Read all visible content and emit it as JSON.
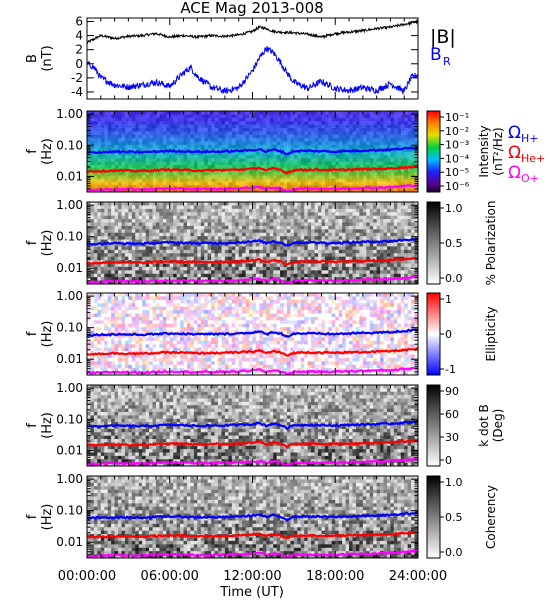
{
  "chart_data": {
    "title": "ACE Mag 2013-008",
    "xlabel": "Time (UT)",
    "x_ticks": [
      "00:00:00",
      "06:00:00",
      "12:00:00",
      "18:00:00",
      "24:00:00"
    ],
    "x_range_hours": [
      0,
      24
    ],
    "panels": [
      {
        "type": "line",
        "ylabel": [
          "B",
          "(nT)"
        ],
        "ylim": [
          -5,
          6.5
        ],
        "y_ticks": [
          "6",
          "4",
          "2",
          "0",
          "-2",
          "-4"
        ],
        "y_tick_values": [
          6,
          4,
          2,
          0,
          -2,
          -4
        ],
        "legend": [
          "|B|",
          "B_R"
        ],
        "legend_text": {
          "b_main": "|B|",
          "b_r_main": "B",
          "b_r_sub": "R"
        },
        "series": [
          {
            "name": "|B|",
            "color": "#000000",
            "x": [
              0,
              1,
              2,
              3,
              4,
              5,
              6,
              7,
              8,
              9,
              10,
              11,
              12,
              12.5,
              13,
              13.5,
              14,
              15,
              16,
              17,
              18,
              19,
              20,
              21,
              22,
              23,
              24
            ],
            "y": [
              3.0,
              4.0,
              3.6,
              3.9,
              4.0,
              4.3,
              3.8,
              4.0,
              3.8,
              4.0,
              3.9,
              4.1,
              4.6,
              5.2,
              5.0,
              4.6,
              4.5,
              4.4,
              4.2,
              3.8,
              4.3,
              4.5,
              4.7,
              5.0,
              5.2,
              5.6,
              6.0
            ]
          },
          {
            "name": "B_R",
            "color": "#0000ff",
            "x": [
              0,
              0.5,
              1,
              2,
              3,
              4,
              5,
              6,
              7,
              7.5,
              8,
              9,
              10,
              11,
              12,
              12.5,
              13,
              13.5,
              14,
              14.5,
              15,
              16,
              17,
              18,
              19,
              20,
              21,
              22,
              23,
              23.5,
              24
            ],
            "y": [
              0.0,
              -0.5,
              -2.0,
              -3.0,
              -3.3,
              -3.0,
              -2.6,
              -3.2,
              -1.3,
              -0.5,
              -1.8,
              -3.3,
              -3.9,
              -3.4,
              -1.0,
              0.8,
              2.2,
              1.6,
              0.3,
              -1.3,
              -2.6,
              -3.5,
              -2.5,
              -3.5,
              -3.8,
              -3.4,
              -3.8,
              -2.8,
              -3.9,
              -2.0,
              -1.5
            ]
          }
        ]
      },
      {
        "type": "heatmap",
        "name": "intensity",
        "ylabel": [
          "f",
          "(Hz)"
        ],
        "y_ticks": [
          "1.00",
          "0.10",
          "0.01"
        ],
        "colorbar_label": [
          "Intensity",
          "(nT²/Hz)"
        ],
        "colorbar_ticks": [
          "10⁻¹",
          "10⁻²",
          "10⁻³",
          "10⁻⁴",
          "10⁻⁵",
          "10⁻⁶"
        ],
        "colormap": "rainbow",
        "legend_text": {
          "omega": "Ω",
          "h": "H+",
          "he": "He+",
          "o": "O+"
        }
      },
      {
        "type": "heatmap",
        "name": "polarization",
        "ylabel": [
          "f",
          "(Hz)"
        ],
        "y_ticks": [
          "1.00",
          "0.10",
          "0.01"
        ],
        "colorbar_label": [
          "% Polarization"
        ],
        "colorbar_ticks": [
          "1.0",
          "0.5",
          "0.0"
        ],
        "colormap": "gray"
      },
      {
        "type": "heatmap",
        "name": "ellipticity",
        "ylabel": [
          "f",
          "(Hz)"
        ],
        "y_ticks": [
          "1.00",
          "0.10",
          "0.01"
        ],
        "colorbar_label": [
          "Ellipticity"
        ],
        "colorbar_ticks": [
          "1",
          "0",
          "-1"
        ],
        "colormap": "blue-white-red"
      },
      {
        "type": "heatmap",
        "name": "kdotb",
        "ylabel": [
          "f",
          "(Hz)"
        ],
        "y_ticks": [
          "1.00",
          "0.10",
          "0.01"
        ],
        "colorbar_label": [
          "k dot B",
          "(Deg)"
        ],
        "colorbar_ticks": [
          "90",
          "60",
          "30",
          "0"
        ],
        "colormap": "gray"
      },
      {
        "type": "heatmap",
        "name": "coherency",
        "ylabel": [
          "f",
          "(Hz)"
        ],
        "y_ticks": [
          "1.00",
          "0.10",
          "0.01"
        ],
        "colorbar_label": [
          "Coherency"
        ],
        "colorbar_ticks": [
          "1.0",
          "0.5",
          "0.0"
        ],
        "colormap": "gray"
      }
    ],
    "gyrofrequency_lines": [
      {
        "name": "Ω_H+",
        "color": "#0000ff",
        "x": [
          0,
          2,
          4,
          6,
          8,
          10,
          11,
          12,
          12.5,
          13,
          13.5,
          14,
          14.5,
          15,
          16,
          18,
          20,
          22,
          24
        ],
        "f_hz": [
          0.058,
          0.062,
          0.06,
          0.066,
          0.062,
          0.063,
          0.066,
          0.07,
          0.075,
          0.062,
          0.072,
          0.066,
          0.052,
          0.065,
          0.066,
          0.063,
          0.068,
          0.072,
          0.085
        ]
      },
      {
        "name": "Ω_He+",
        "color": "#ff0000",
        "x": [
          0,
          2,
          4,
          6,
          8,
          10,
          11,
          12,
          12.5,
          13,
          13.5,
          14,
          14.5,
          15,
          16,
          18,
          20,
          22,
          24
        ],
        "f_hz": [
          0.0145,
          0.0155,
          0.015,
          0.0165,
          0.0155,
          0.016,
          0.0165,
          0.0175,
          0.019,
          0.0155,
          0.018,
          0.0165,
          0.013,
          0.016,
          0.0165,
          0.016,
          0.017,
          0.018,
          0.021
        ]
      },
      {
        "name": "Ω_O+",
        "color": "#ff00ff",
        "x": [
          0,
          2,
          4,
          6,
          8,
          10,
          11,
          12,
          12.5,
          13,
          13.5,
          14,
          14.5,
          15,
          16,
          18,
          20,
          22,
          24
        ],
        "f_hz": [
          0.0036,
          0.0039,
          0.0038,
          0.0041,
          0.0039,
          0.004,
          0.0041,
          0.0044,
          0.0047,
          0.0039,
          0.0045,
          0.0041,
          0.0033,
          0.004,
          0.0041,
          0.004,
          0.0043,
          0.0045,
          0.0053
        ]
      }
    ]
  }
}
